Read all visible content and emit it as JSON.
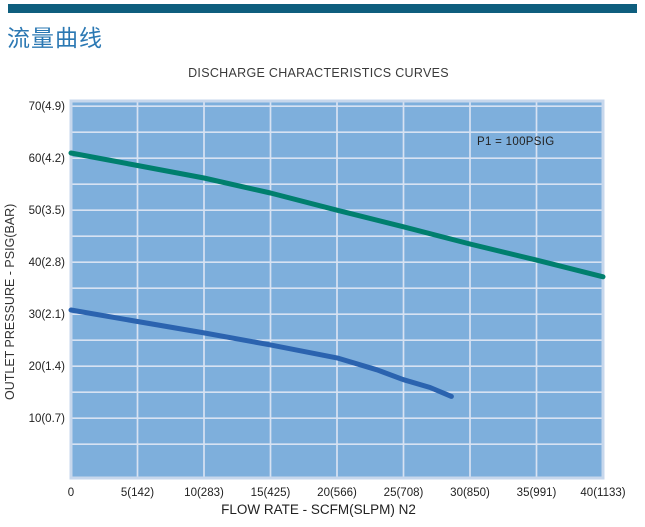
{
  "page": {
    "background": "#ffffff",
    "accent_bar_color": "#0E5E7E"
  },
  "header": {
    "title": "流量曲线",
    "title_color": "#2B78B3"
  },
  "chart_data": {
    "type": "line",
    "title": "DISCHARGE CHARACTERISTICS CURVES",
    "xlabel": "FLOW RATE - SCFM(SLPM) N2",
    "ylabel": "OUTLET PRESSURE - PSIG(BAR)",
    "annotation": "P1 = 100PSIG",
    "xlim": [
      0,
      40
    ],
    "ylim": [
      -1.5,
      71
    ],
    "grid": true,
    "grid_step": 5,
    "legend": "none",
    "x_ticks": [
      {
        "value": 0,
        "label": "0"
      },
      {
        "value": 5,
        "label": "5(142)"
      },
      {
        "value": 10,
        "label": "10(283)"
      },
      {
        "value": 15,
        "label": "15(425)"
      },
      {
        "value": 20,
        "label": "20(566)"
      },
      {
        "value": 25,
        "label": "25(708)"
      },
      {
        "value": 30,
        "label": "30(850)"
      },
      {
        "value": 35,
        "label": "35(991)"
      },
      {
        "value": 40,
        "label": "40(1133)"
      }
    ],
    "y_ticks": [
      {
        "value": 70,
        "label": "70(4.9)"
      },
      {
        "value": 60,
        "label": "60(4.2)"
      },
      {
        "value": 50,
        "label": "50(3.5)"
      },
      {
        "value": 40,
        "label": "40(2.8)"
      },
      {
        "value": 30,
        "label": "30(2.1)"
      },
      {
        "value": 20,
        "label": "20(1.4)"
      },
      {
        "value": 10,
        "label": "10(0.7)"
      }
    ],
    "colors": {
      "plot_bg": "#7EAFDC",
      "grid": "#D7E2F2",
      "border": "#C7D7EC",
      "tick_text": "#222222",
      "upper_curve": "#007F6E",
      "lower_curve": "#2B63AF"
    },
    "series": [
      {
        "name": "upper-curve",
        "color": "#007F6E",
        "points": [
          [
            0,
            61
          ],
          [
            5,
            58.6
          ],
          [
            10,
            56.2
          ],
          [
            15,
            53.3
          ],
          [
            20,
            50.0
          ],
          [
            25,
            46.8
          ],
          [
            30,
            43.5
          ],
          [
            35,
            40.4
          ],
          [
            40,
            37.2
          ]
        ]
      },
      {
        "name": "lower-curve",
        "color": "#2B63AF",
        "points": [
          [
            0,
            30.8
          ],
          [
            5,
            28.6
          ],
          [
            10,
            26.4
          ],
          [
            15,
            24.1
          ],
          [
            20,
            21.6
          ],
          [
            23,
            19.3
          ],
          [
            25,
            17.4
          ],
          [
            27,
            15.9
          ],
          [
            28.6,
            14.2
          ]
        ]
      }
    ]
  }
}
